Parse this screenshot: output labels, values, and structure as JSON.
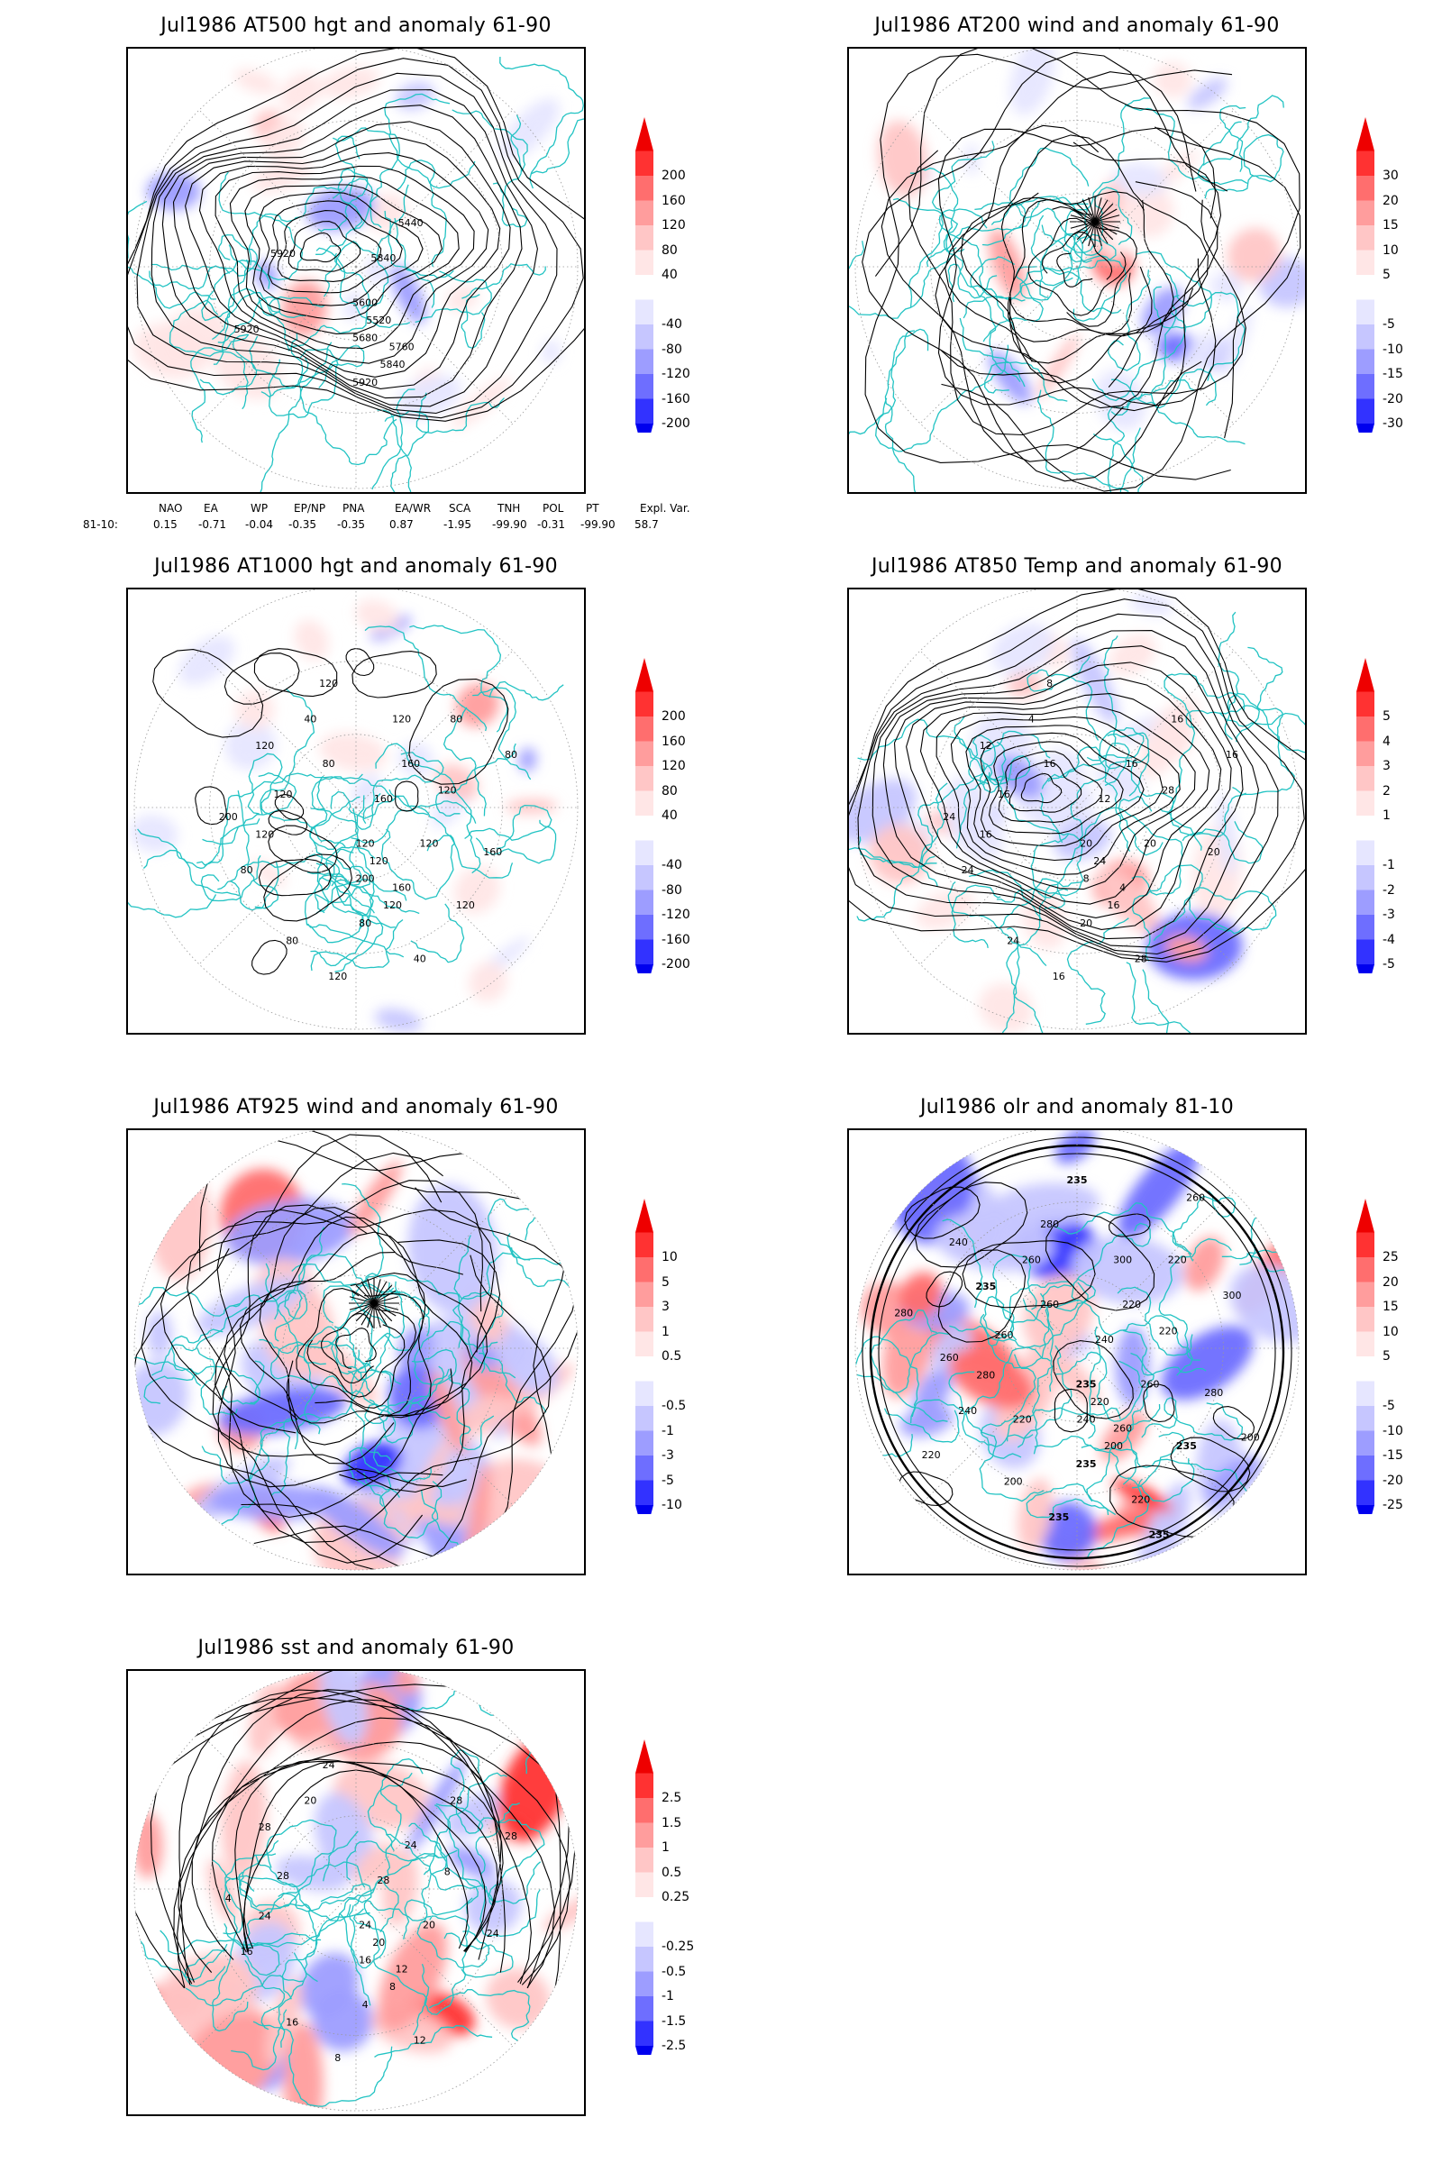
{
  "palette": {
    "coast": "#22c3c3",
    "contour": "#000000",
    "grid": "#9a9a9a",
    "warm": [
      "#ffe6e6",
      "#ffc6c6",
      "#ff9d9d",
      "#ff6e6e",
      "#ff3232",
      "#ee0000"
    ],
    "cool": [
      "#e6e6ff",
      "#c6c6ff",
      "#9d9dff",
      "#6e6eff",
      "#3232ff",
      "#0000ee"
    ]
  },
  "panels": [
    {
      "id": "p500",
      "title": "Jul1986 AT500 hgt and anomaly 61-90",
      "colorbar": [
        "200",
        "160",
        "120",
        "80",
        "40",
        "-40",
        "-80",
        "-120",
        "-160",
        "-200"
      ],
      "contour_labels": [
        "5920",
        "5840",
        "5440",
        "5600",
        "5520",
        "5680",
        "5760",
        "5840",
        "5920",
        "5920"
      ]
    },
    {
      "id": "p200",
      "title": "Jul1986 AT200 wind and anomaly 61-90",
      "colorbar": [
        "30",
        "20",
        "15",
        "10",
        "5",
        "-5",
        "-10",
        "-15",
        "-20",
        "-30"
      ],
      "contour_labels": []
    },
    {
      "id": "p1000",
      "title": "Jul1986 AT1000 hgt and anomaly 61-90",
      "colorbar": [
        "200",
        "160",
        "120",
        "80",
        "40",
        "-40",
        "-80",
        "-120",
        "-160",
        "-200"
      ],
      "contour_labels": [
        "120",
        "160",
        "160",
        "120",
        "120",
        "200",
        "160",
        "120",
        "80",
        "80",
        "120",
        "40",
        "120",
        "120",
        "80",
        "120",
        "80",
        "40",
        "120",
        "200",
        "160",
        "80",
        "120",
        "80",
        "120",
        "120"
      ]
    },
    {
      "id": "p850",
      "title": "Jul1986 AT850 Temp and anomaly 61-90",
      "colorbar": [
        "5",
        "4",
        "3",
        "2",
        "1",
        "-1",
        "-2",
        "-3",
        "-4",
        "-5"
      ],
      "contour_labels": [
        "16",
        "12",
        "16",
        "20",
        "24",
        "8",
        "4",
        "16",
        "20",
        "24",
        "28",
        "4",
        "8",
        "12",
        "16",
        "20",
        "24",
        "28",
        "16",
        "24",
        "20",
        "16",
        "16",
        "16"
      ]
    },
    {
      "id": "p925",
      "title": "Jul1986 AT925 wind and anomaly 61-90",
      "colorbar": [
        "10",
        "5",
        "3",
        "1",
        "0.5",
        "-0.5",
        "-1",
        "-3",
        "-5",
        "-10"
      ],
      "contour_labels": []
    },
    {
      "id": "polr",
      "title": "Jul1986 olr and anomaly 81-10",
      "colorbar": [
        "25",
        "20",
        "15",
        "10",
        "5",
        "-5",
        "-10",
        "-15",
        "-20",
        "-25"
      ],
      "contour_labels": [
        "260",
        "240",
        "220",
        "235",
        "220",
        "240",
        "260",
        "200",
        "235",
        "240",
        "220",
        "260",
        "280",
        "235",
        "220",
        "260",
        "200",
        "220",
        "235",
        "260",
        "280",
        "300",
        "280",
        "260",
        "300",
        "235",
        "220",
        "200",
        "235",
        "240",
        "260",
        "280",
        "220",
        "235"
      ]
    },
    {
      "id": "psst",
      "title": "Jul1986 sst and anomaly 61-90",
      "colorbar": [
        "2.5",
        "1.5",
        "1",
        "0.5",
        "0.25",
        "-0.25",
        "-0.5",
        "-1",
        "-1.5",
        "-2.5"
      ],
      "contour_labels": [
        "28",
        "28",
        "24",
        "24",
        "20",
        "16",
        "12",
        "8",
        "4",
        "16",
        "8",
        "20",
        "24",
        "28",
        "28",
        "20",
        "16",
        "12",
        "8",
        "4",
        "24",
        "28",
        "24"
      ]
    }
  ],
  "teleconnection": {
    "headers": [
      "NAO",
      "EA",
      "WP",
      "EP/NP",
      "PNA",
      "EA/WR",
      "SCA",
      "TNH",
      "POL",
      "PT",
      "Expl. Var."
    ],
    "row_label": "81-10:",
    "values": [
      "0.15",
      "-0.71",
      "-0.04",
      "-0.35",
      "-0.35",
      "0.87",
      "-1.95",
      "-99.90",
      "-0.31",
      "-99.90",
      "58.7"
    ]
  }
}
